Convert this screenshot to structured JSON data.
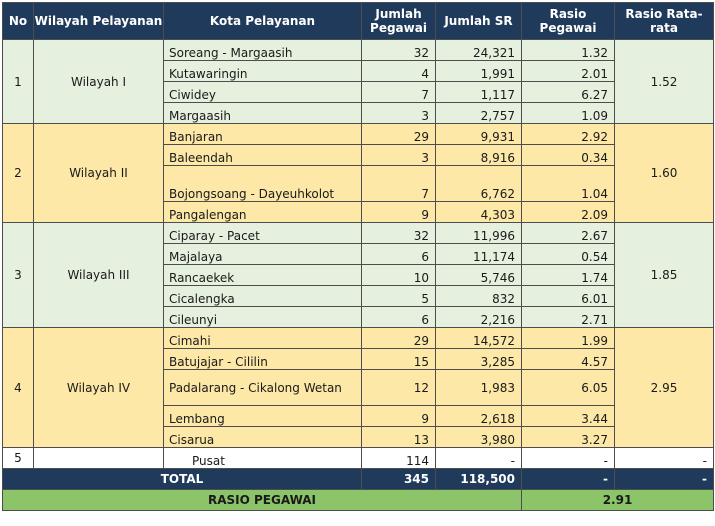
{
  "header": {
    "no": "No",
    "wilayah": "Wilayah Pelayanan",
    "kota": "Kota Pelayanan",
    "pegawai": "Jumlah Pegawai",
    "sr": "Jumlah SR",
    "rasio": "Rasio Pegawai",
    "rata": "Rasio Rata-rata"
  },
  "groups": [
    {
      "no": "1",
      "wilayah": "Wilayah I",
      "rata": "1.52",
      "rows": [
        {
          "kota": "Soreang - Margaasih",
          "pegawai": "32",
          "sr": "24,321",
          "rasio": "1.32"
        },
        {
          "kota": "Kutawaringin",
          "pegawai": "4",
          "sr": "1,991",
          "rasio": "2.01"
        },
        {
          "kota": "Ciwidey",
          "pegawai": "7",
          "sr": "1,117",
          "rasio": "6.27"
        },
        {
          "kota": "Margaasih",
          "pegawai": "3",
          "sr": "2,757",
          "rasio": "1.09"
        }
      ]
    },
    {
      "no": "2",
      "wilayah": "Wilayah II",
      "rata": "1.60",
      "rows": [
        {
          "kota": "Banjaran",
          "pegawai": "29",
          "sr": "9,931",
          "rasio": "2.92"
        },
        {
          "kota": "Baleendah",
          "pegawai": "3",
          "sr": "8,916",
          "rasio": "0.34"
        },
        {
          "kota": "Bojongsoang - Dayeuhkolot",
          "pegawai": "7",
          "sr": "6,762",
          "rasio": "1.04"
        },
        {
          "kota": "Pangalengan",
          "pegawai": "9",
          "sr": "4,303",
          "rasio": "2.09"
        }
      ]
    },
    {
      "no": "3",
      "wilayah": "Wilayah III",
      "rata": "1.85",
      "rows": [
        {
          "kota": "Ciparay - Pacet",
          "pegawai": "32",
          "sr": "11,996",
          "rasio": "2.67"
        },
        {
          "kota": "Majalaya",
          "pegawai": "6",
          "sr": "11,174",
          "rasio": "0.54"
        },
        {
          "kota": "Rancaekek",
          "pegawai": "10",
          "sr": "5,746",
          "rasio": "1.74"
        },
        {
          "kota": "Cicalengka",
          "pegawai": "5",
          "sr": "832",
          "rasio": "6.01"
        },
        {
          "kota": "Cileunyi",
          "pegawai": "6",
          "sr": "2,216",
          "rasio": "2.71"
        }
      ]
    },
    {
      "no": "4",
      "wilayah": "Wilayah IV",
      "rata": "2.95",
      "rows": [
        {
          "kota": "Cimahi",
          "pegawai": "29",
          "sr": "14,572",
          "rasio": "1.99"
        },
        {
          "kota": "Batujajar - Cililin",
          "pegawai": "15",
          "sr": "3,285",
          "rasio": "4.57"
        },
        {
          "kota": "Padalarang - Cikalong Wetan",
          "pegawai": "12",
          "sr": "1,983",
          "rasio": "6.05"
        },
        {
          "kota": "Lembang",
          "pegawai": "9",
          "sr": "2,618",
          "rasio": "3.44"
        },
        {
          "kota": "Cisarua",
          "pegawai": "13",
          "sr": "3,980",
          "rasio": "3.27"
        }
      ]
    }
  ],
  "pusat": {
    "no": "5",
    "kota": "Pusat",
    "pegawai": "114",
    "sr": "-",
    "rasio": "-",
    "rata": "-"
  },
  "total": {
    "label": "TOTAL",
    "pegawai": "345",
    "sr": "118,500",
    "rasio": "-",
    "rata": "-"
  },
  "rasio_pegawai": {
    "label": "RASIO PEGAWAI",
    "value": "2.91"
  }
}
